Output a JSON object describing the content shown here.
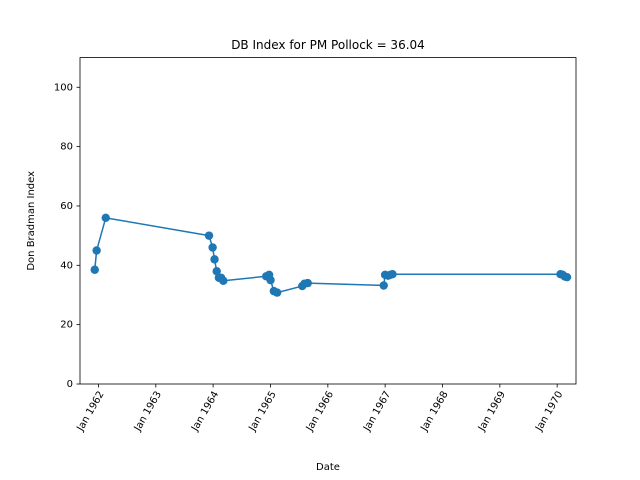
{
  "chart_data": {
    "type": "line",
    "title": "DB Index for PM Pollock = 36.04",
    "xlabel": "Date",
    "ylabel": "Don Bradman Index",
    "ylim": [
      0,
      110
    ],
    "xlim": [
      "1961-09-05",
      "1970-05-01"
    ],
    "grid": false,
    "line_color": "#1f77b4",
    "yticks": [
      0,
      20,
      40,
      60,
      80,
      100
    ],
    "xticks": [
      {
        "date": "1962-01-01",
        "label": "Jan 1962"
      },
      {
        "date": "1963-01-01",
        "label": "Jan 1963"
      },
      {
        "date": "1964-01-01",
        "label": "Jan 1964"
      },
      {
        "date": "1965-01-01",
        "label": "Jan 1965"
      },
      {
        "date": "1966-01-01",
        "label": "Jan 1966"
      },
      {
        "date": "1967-01-01",
        "label": "Jan 1967"
      },
      {
        "date": "1968-01-01",
        "label": "Jan 1968"
      },
      {
        "date": "1969-01-01",
        "label": "Jan 1969"
      },
      {
        "date": "1970-01-01",
        "label": "Jan 1970"
      }
    ],
    "series": [
      {
        "points": [
          {
            "x": "1961-12-08",
            "y": 38.5
          },
          {
            "x": "1961-12-20",
            "y": 45.0
          },
          {
            "x": "1962-02-16",
            "y": 56.0
          },
          {
            "x": "1963-12-06",
            "y": 50.0
          },
          {
            "x": "1963-12-29",
            "y": 46.0
          },
          {
            "x": "1964-01-10",
            "y": 42.0
          },
          {
            "x": "1964-01-24",
            "y": 38.0
          },
          {
            "x": "1964-02-07",
            "y": 35.8
          },
          {
            "x": "1964-02-21",
            "y": 35.8
          },
          {
            "x": "1964-03-06",
            "y": 34.8
          },
          {
            "x": "1964-12-04",
            "y": 36.3
          },
          {
            "x": "1964-12-23",
            "y": 36.8
          },
          {
            "x": "1965-01-01",
            "y": 35.0
          },
          {
            "x": "1965-01-22",
            "y": 31.3
          },
          {
            "x": "1965-02-12",
            "y": 30.8
          },
          {
            "x": "1965-07-22",
            "y": 33.0
          },
          {
            "x": "1965-08-05",
            "y": 33.8
          },
          {
            "x": "1965-08-26",
            "y": 34.0
          },
          {
            "x": "1966-12-23",
            "y": 33.2
          },
          {
            "x": "1967-01-01",
            "y": 36.8
          },
          {
            "x": "1967-01-20",
            "y": 36.5
          },
          {
            "x": "1967-02-03",
            "y": 36.8
          },
          {
            "x": "1967-02-17",
            "y": 37.0
          },
          {
            "x": "1970-01-22",
            "y": 37.0
          },
          {
            "x": "1970-02-05",
            "y": 36.8
          },
          {
            "x": "1970-02-19",
            "y": 36.2
          },
          {
            "x": "1970-03-05",
            "y": 36.0
          }
        ]
      }
    ]
  }
}
